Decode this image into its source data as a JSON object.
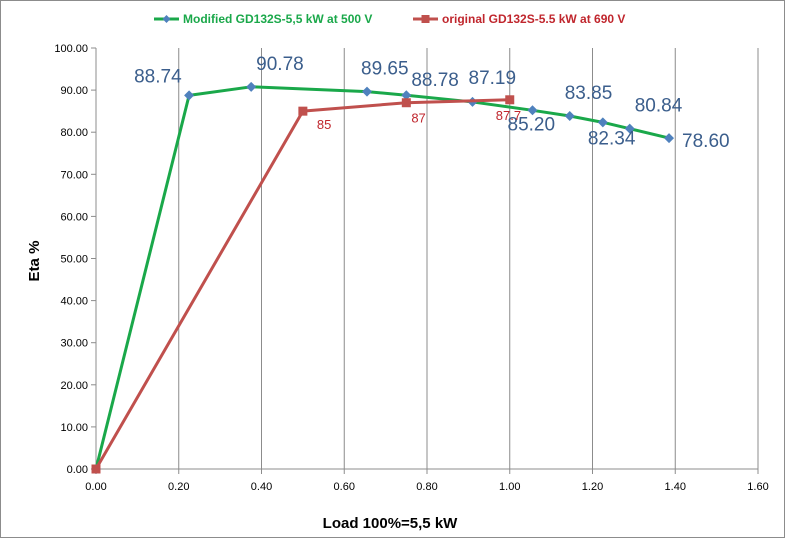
{
  "chart_data": {
    "type": "line",
    "xlabel": "Load 100%=5,5 kW",
    "ylabel": "Eta %",
    "xlim": [
      0,
      1.6
    ],
    "ylim": [
      0,
      100
    ],
    "x_ticks": [
      "0.00",
      "0.20",
      "0.40",
      "0.60",
      "0.80",
      "1.00",
      "1.20",
      "1.40",
      "1.60"
    ],
    "y_ticks": [
      "0.00",
      "10.00",
      "20.00",
      "30.00",
      "40.00",
      "50.00",
      "60.00",
      "70.00",
      "80.00",
      "90.00",
      "100.00"
    ],
    "grid": "vertical",
    "legend_position": "top",
    "series": [
      {
        "name": "Modified GD132S-5,5 kW at 500 V",
        "color": "#1aa84a",
        "marker_color": "#4f81bd",
        "marker": "diamond",
        "x": [
          0.0,
          0.225,
          0.375,
          0.655,
          0.75,
          0.91,
          1.055,
          1.145,
          1.225,
          1.29,
          1.385
        ],
        "y": [
          0.0,
          88.74,
          90.78,
          89.65,
          88.78,
          87.19,
          85.2,
          83.85,
          82.34,
          80.84,
          78.6
        ],
        "labels": [
          "",
          "88.74",
          "90.78",
          "89.65",
          "88.78",
          "87.19",
          "85.20",
          "83.85",
          "82.34",
          "80.84",
          "78.60"
        ]
      },
      {
        "name": "original GD132S-5.5 kW at 690 V",
        "color": "#c0504d",
        "marker_color": "#c0504d",
        "marker": "square",
        "x": [
          0.0,
          0.5,
          0.75,
          1.0
        ],
        "y": [
          0.0,
          85.0,
          87.0,
          87.7
        ],
        "labels": [
          "",
          "85",
          "87",
          "87.7"
        ]
      }
    ]
  }
}
